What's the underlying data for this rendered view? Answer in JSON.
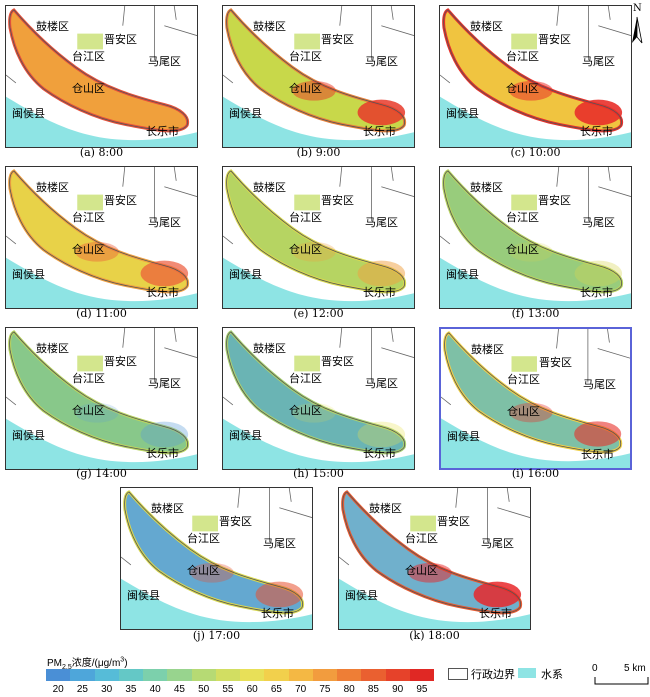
{
  "panels": [
    {
      "caption": "(a) 8:00",
      "fill": "#f0a03c",
      "hot": "#e8503a",
      "hotAlpha": 0.0,
      "edge": "#e8503a"
    },
    {
      "caption": "(b) 9:00",
      "fill": "#c8d84a",
      "hot": "#e83a2a",
      "hotAlpha": 0.85,
      "edge": "#e8803a"
    },
    {
      "caption": "(c) 10:00",
      "fill": "#f0c440",
      "hot": "#e8302a",
      "hotAlpha": 0.9,
      "edge": "#e8302a"
    },
    {
      "caption": "(d) 11:00",
      "fill": "#e8d248",
      "hot": "#ec5a3a",
      "hotAlpha": 0.7,
      "edge": "#f0a040"
    },
    {
      "caption": "(e) 12:00",
      "fill": "#b6d462",
      "hot": "#f0a040",
      "hotAlpha": 0.5,
      "edge": "#d8d850"
    },
    {
      "caption": "(f) 13:00",
      "fill": "#98cc7c",
      "hot": "#d8d450",
      "hotAlpha": 0.35,
      "edge": "#b8d460"
    },
    {
      "caption": "(g) 14:00",
      "fill": "#88c88a",
      "hot": "#5a9ad8",
      "hotAlpha": 0.35,
      "edge": "#b8d460"
    },
    {
      "caption": "(h) 15:00",
      "fill": "#6ab4b4",
      "hot": "#e8e050",
      "hotAlpha": 0.3,
      "edge": "#a8d070"
    },
    {
      "caption": "(i) 16:00",
      "fill": "#7ec0a6",
      "hot": "#e8302a",
      "hotAlpha": 0.6,
      "edge": "#f0d048"
    },
    {
      "caption": "(j) 17:00",
      "fill": "#64a8d0",
      "hot": "#e85030",
      "hotAlpha": 0.55,
      "edge": "#d8d850"
    },
    {
      "caption": "(k) 18:00",
      "fill": "#70b0cc",
      "hot": "#e8282a",
      "hotAlpha": 0.85,
      "edge": "#e85a30"
    }
  ],
  "place_names": {
    "gulou": "鼓楼区",
    "jinan": "晋安区",
    "taijiang": "台江区",
    "mawei": "马尾区",
    "cangshan": "仓山区",
    "minhou": "闽侯县",
    "changle": "长乐市"
  },
  "north": "N",
  "legend": {
    "title_prefix": "PM",
    "title_sub": "2.5",
    "title_suffix": "浓度/(μg/m",
    "title_sup": "3",
    "title_end": ")",
    "ticks": [
      "20",
      "25",
      "30",
      "35",
      "40",
      "45",
      "50",
      "55",
      "60",
      "65",
      "70",
      "75",
      "80",
      "85",
      "90",
      "95"
    ],
    "colors": [
      "#4a8fd6",
      "#4ea6da",
      "#56bcd8",
      "#64c8c6",
      "#7cd0ac",
      "#98d48e",
      "#b6da74",
      "#d2de62",
      "#e8e058",
      "#f2d04c",
      "#f4b844",
      "#f29c3e",
      "#ee7e36",
      "#ea6030",
      "#e6422a",
      "#e02824"
    ],
    "boundary_label": "行政边界",
    "water_label": "水系",
    "water_color": "#8ee4e4",
    "scale_zero": "0",
    "scale_label": "5 km"
  }
}
